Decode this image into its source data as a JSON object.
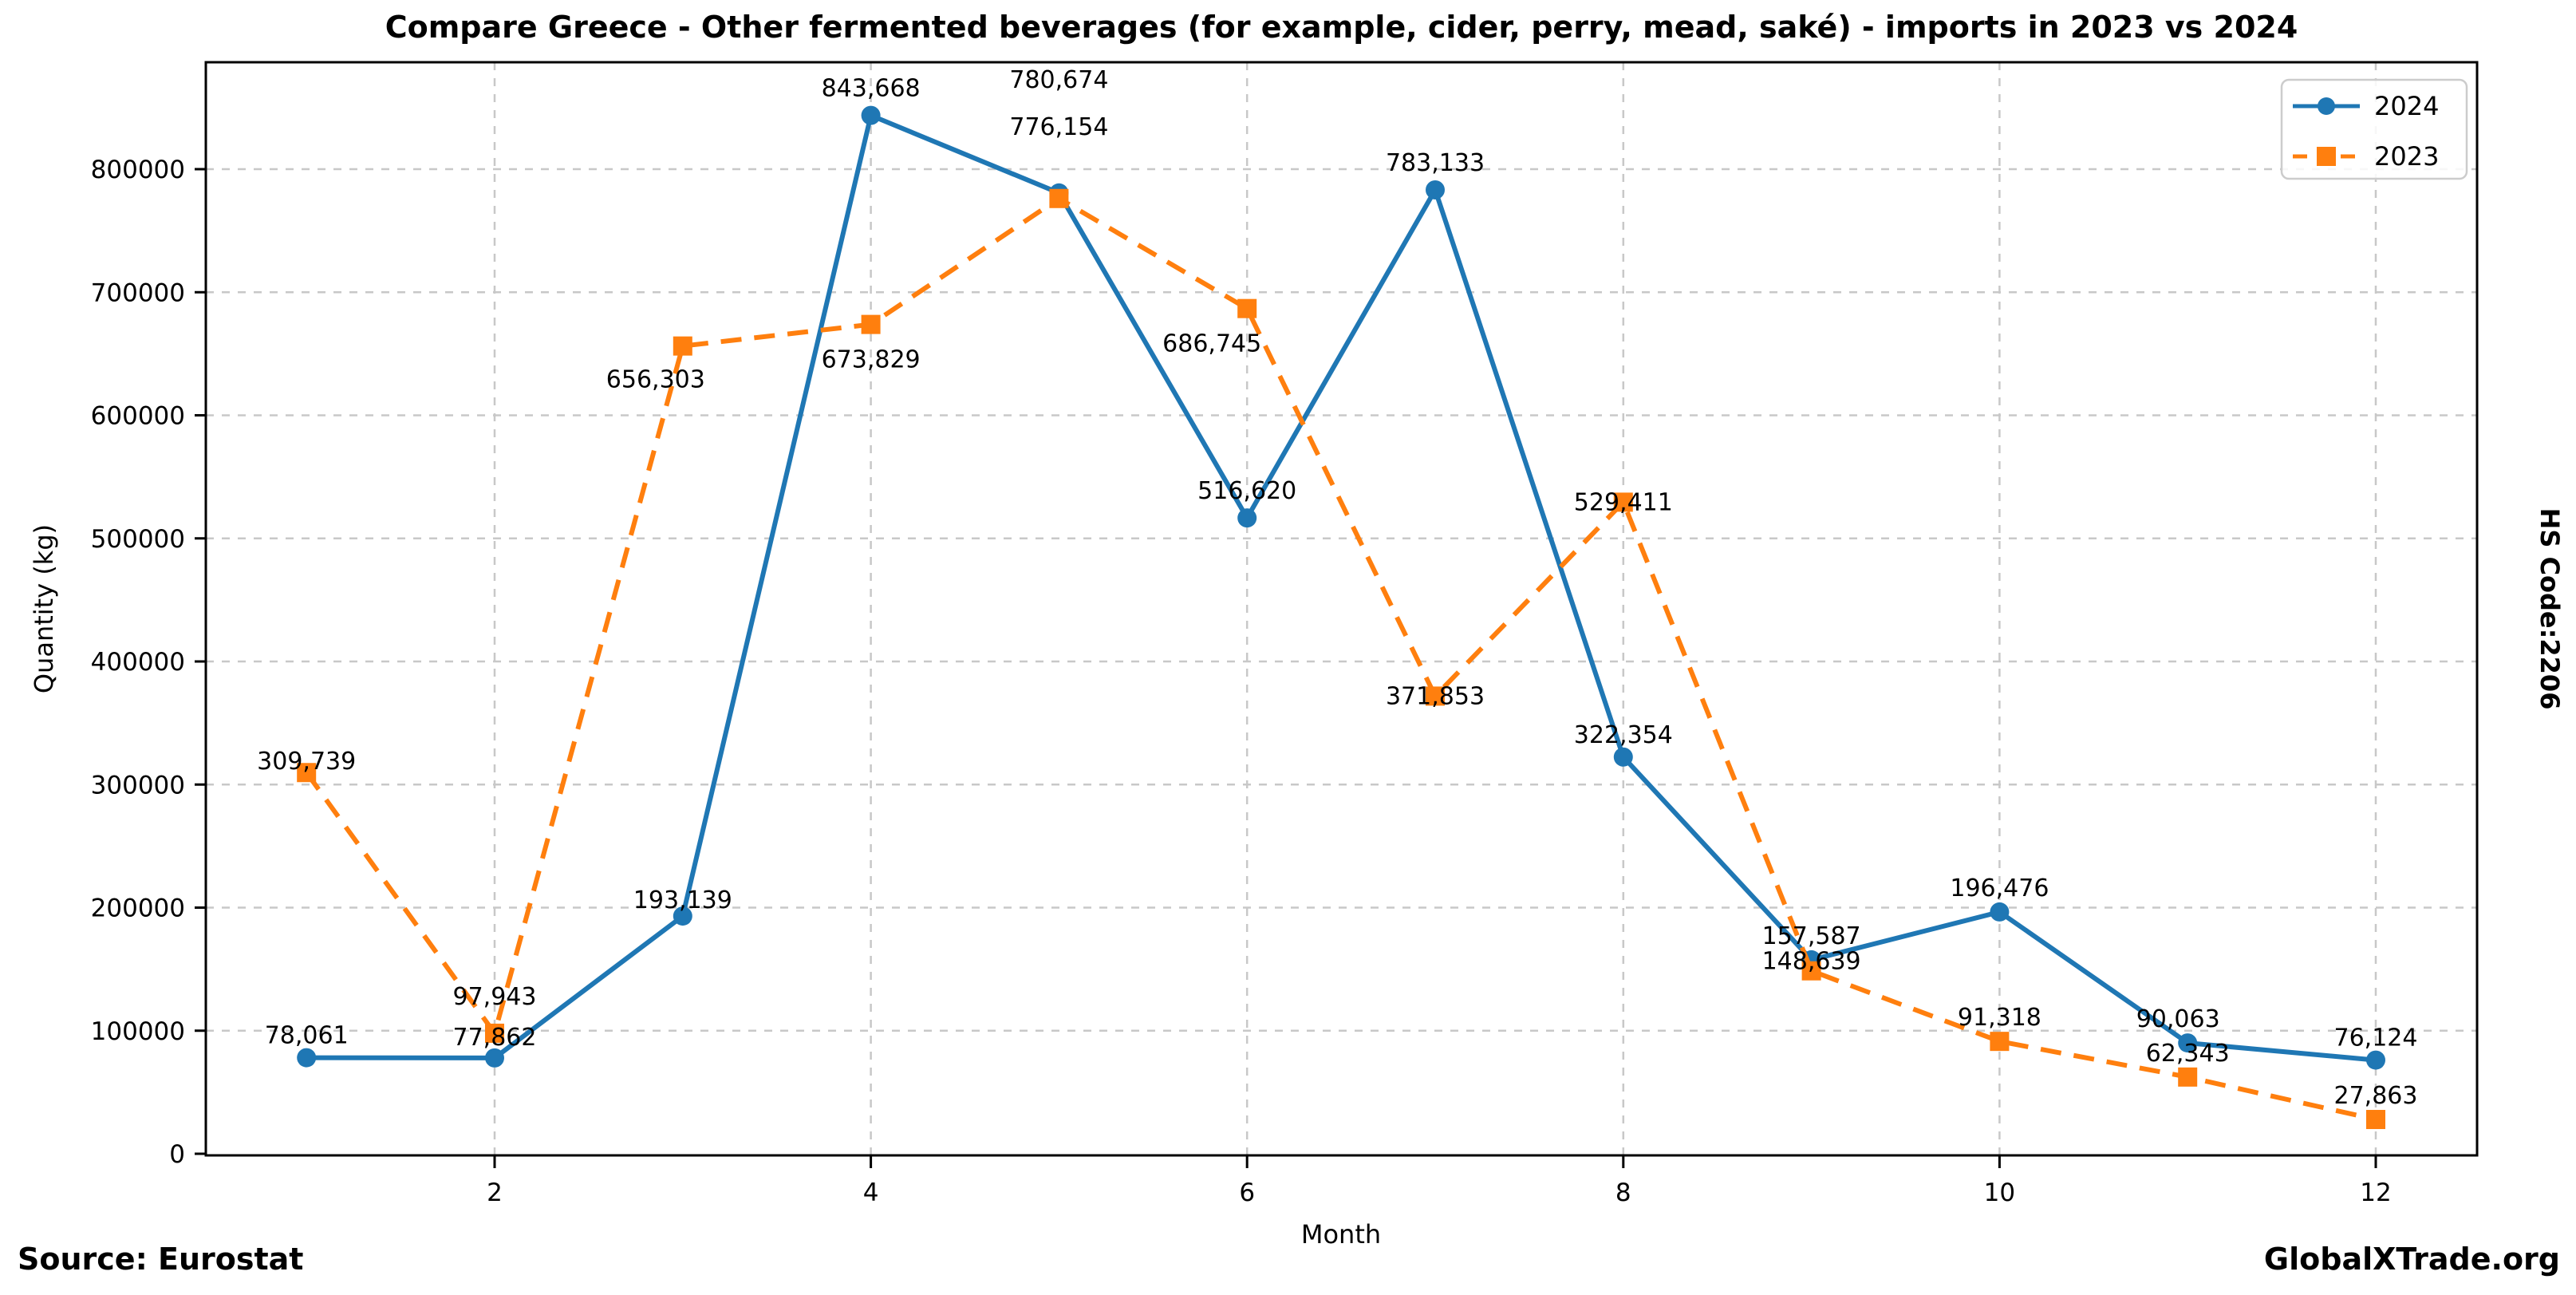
{
  "title": "Compare Greece - Other fermented beverages (for example, cider, perry, mead, saké) - imports in 2023 vs 2024",
  "footer": {
    "source": "Source: Eurostat",
    "brand": "GlobalXTrade.org"
  },
  "side_label": "HS Code:2206",
  "chart_data": {
    "type": "line",
    "title": "Compare Greece - Other fermented beverages (for example, cider, perry, mead, saké) - imports in 2023 vs 2024",
    "xlabel": "Month",
    "ylabel": "Quantity (kg)",
    "x": [
      1,
      2,
      3,
      4,
      5,
      6,
      7,
      8,
      9,
      10,
      11,
      12
    ],
    "x_tick_labels": [
      2,
      4,
      6,
      8,
      10,
      12
    ],
    "y_ticks": [
      0,
      100000,
      200000,
      300000,
      400000,
      500000,
      600000,
      700000,
      800000
    ],
    "ylim": [
      0,
      890000
    ],
    "xlim": [
      0.45,
      12.55
    ],
    "grid": true,
    "grid_color": "#c8c8c8",
    "legend": {
      "position": "upper right",
      "entries": [
        "2024",
        "2023"
      ]
    },
    "series": [
      {
        "name": "2024",
        "color": "#1f77b4",
        "line_style": "solid",
        "marker": "circle",
        "values": [
          78061,
          77862,
          193139,
          843668,
          780674,
          516620,
          783133,
          322354,
          157587,
          196476,
          90063,
          76124
        ]
      },
      {
        "name": "2023",
        "color": "#ff7f0e",
        "line_style": "dashed",
        "marker": "square",
        "values": [
          309739,
          97943,
          656303,
          673829,
          776154,
          686745,
          371853,
          529411,
          148639,
          91318,
          62343,
          27863
        ]
      }
    ],
    "value_label_format": "thousands-comma"
  }
}
